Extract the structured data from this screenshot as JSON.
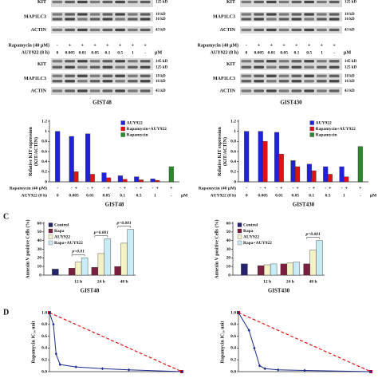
{
  "blots": [
    {
      "cell": "GIST48",
      "top_strips": [
        {
          "label": "KIT",
          "kd": [
            "125 kD"
          ]
        },
        {
          "label": "MAP1LC3",
          "kd": [
            "18 kD",
            "16 kD"
          ]
        },
        {
          "label": "ACTIN",
          "kd": [
            "43 kD"
          ]
        }
      ],
      "rapamycin_label": "Rapamycin (40 µM)",
      "rapamycin": [
        "-",
        "+",
        "+",
        "+",
        "+",
        "+",
        "+",
        "+"
      ],
      "auy_label": "AUY922 (8 h)",
      "auy": [
        "0",
        "0.005",
        "0.01",
        "0.05",
        "0.1",
        "0.5",
        "1",
        "-"
      ],
      "unit": "µM",
      "strips": [
        {
          "label": "KIT",
          "kd": [
            "145 kD",
            "125 kD"
          ]
        },
        {
          "label": "MAP1LC3",
          "kd": [
            "18 kD",
            "16 kD"
          ]
        },
        {
          "label": "ACTIN",
          "kd": [
            "43 kD"
          ]
        }
      ]
    },
    {
      "cell": "GIST430",
      "top_strips": [
        {
          "label": "KIT",
          "kd": [
            "125 kD"
          ]
        },
        {
          "label": "MAP1LC3",
          "kd": [
            "18 kD",
            "16 kD"
          ]
        },
        {
          "label": "ACTIN",
          "kd": [
            "43 kD"
          ]
        }
      ],
      "rapamycin_label": "Rapamycin (40 µM)",
      "rapamycin": [
        "-",
        "+",
        "+",
        "+",
        "+",
        "+",
        "+",
        "+"
      ],
      "auy_label": "AUY922 (8 h)",
      "auy": [
        "0",
        "0.005",
        "0.01",
        "0.05",
        "0.1",
        "0.5",
        "1",
        "-"
      ],
      "unit": "µM",
      "strips": [
        {
          "label": "KIT",
          "kd": [
            "145 kD",
            "125 kD"
          ]
        },
        {
          "label": "MAP1LC3",
          "kd": [
            "18 kD",
            "16 kD"
          ]
        },
        {
          "label": "ACTIN",
          "kd": [
            "43 kD"
          ]
        }
      ]
    }
  ],
  "panel_letters": [
    "C",
    "D"
  ],
  "chart_data": [
    {
      "type": "bar",
      "caption": "GIST48",
      "ylabel": [
        "Relative KIT expression",
        "(KIT/ACTIN)"
      ],
      "categories": [
        "0",
        "0.005",
        "0.01",
        "0.05",
        "0.1",
        "0.5",
        "1",
        "-"
      ],
      "rapamycin_label": "Rapamycin (40 µM)",
      "rapamycin": [
        "-",
        "-",
        "+",
        "-",
        "+",
        "-",
        "+",
        "-",
        "+",
        "-",
        "+",
        "-",
        "+",
        "+"
      ],
      "auy_label": "AUY922 (8 h)",
      "unit": "µM",
      "series": [
        {
          "name": "AUY922",
          "color": "#1f22d8",
          "values": [
            1.0,
            0.9,
            0.95,
            0.18,
            0.12,
            0.1,
            0.06,
            null
          ]
        },
        {
          "name": "Rapamycin+AUY922",
          "color": "#e01212",
          "values": [
            null,
            0.2,
            0.15,
            0.08,
            0.05,
            0.04,
            0.03,
            null
          ]
        },
        {
          "name": "Rapamycin",
          "color": "#2a8a2a",
          "values": [
            null,
            null,
            null,
            null,
            null,
            null,
            null,
            0.3
          ]
        }
      ],
      "ylim": [
        0,
        1.2
      ],
      "yticks": [
        0,
        0.2,
        0.4,
        0.6,
        0.8,
        1,
        1.2
      ],
      "legend": "upper right"
    },
    {
      "type": "bar",
      "caption": "GIST430",
      "ylabel": [
        "Relative KIT expression",
        "(KIT/ACTIN)"
      ],
      "categories": [
        "0",
        "0.005",
        "0.01",
        "0.05",
        "0.1",
        "0.5",
        "1",
        "-"
      ],
      "rapamycin_label": "Rapamycin (40 µM)",
      "rapamycin": [
        "-",
        "-",
        "+",
        "-",
        "+",
        "-",
        "+",
        "-",
        "+",
        "-",
        "+",
        "-",
        "+",
        "+"
      ],
      "auy_label": "AUY922 (8 h)",
      "unit": "µM",
      "series": [
        {
          "name": "AUY922",
          "color": "#1f22d8",
          "values": [
            1.0,
            1.0,
            0.98,
            0.42,
            0.35,
            0.3,
            0.3,
            null
          ]
        },
        {
          "name": "Rapamycin+AUY922",
          "color": "#e01212",
          "values": [
            null,
            0.8,
            0.55,
            0.3,
            0.22,
            0.15,
            0.1,
            null
          ]
        },
        {
          "name": "Rapamycin",
          "color": "#2a8a2a",
          "values": [
            null,
            null,
            null,
            null,
            null,
            null,
            null,
            0.7
          ]
        }
      ],
      "ylim": [
        0,
        1.2
      ],
      "yticks": [
        0,
        0.2,
        0.4,
        0.6,
        0.8,
        1,
        1.2
      ],
      "legend": "upper right"
    },
    {
      "type": "bar",
      "caption": "GIST48",
      "ylabel": [
        "Annexin V positive Cells (%)"
      ],
      "categories": [
        null,
        "12 h",
        "24 h",
        "48 h"
      ],
      "series": [
        {
          "name": "Control",
          "color": "#23236e",
          "values": [
            7,
            null,
            null,
            null
          ]
        },
        {
          "name": "Rapa",
          "color": "#7a1f40",
          "values": [
            null,
            8,
            9,
            10
          ]
        },
        {
          "name": "AUY922",
          "color": "#f4f1c6",
          "values": [
            null,
            15,
            25,
            37
          ]
        },
        {
          "name": "Rapa+AUY922",
          "color": "#c9edf6",
          "values": [
            null,
            20,
            42,
            53
          ]
        }
      ],
      "annotations": [
        "p=0.01",
        "p=0.001",
        "p=0.001"
      ],
      "ylim": [
        0,
        60
      ],
      "yticks": [
        0,
        10,
        20,
        30,
        40,
        50,
        60
      ],
      "legend": "upper left"
    },
    {
      "type": "bar",
      "caption": "GIST430",
      "ylabel": [
        "Annexin V positive Cells (%)"
      ],
      "categories": [
        null,
        "12 h",
        "24 h",
        "48 h"
      ],
      "series": [
        {
          "name": "Control",
          "color": "#23236e",
          "values": [
            13,
            null,
            null,
            null
          ]
        },
        {
          "name": "Rapa",
          "color": "#7a1f40",
          "values": [
            null,
            11,
            13,
            13
          ]
        },
        {
          "name": "AUY922",
          "color": "#f4f1c6",
          "values": [
            null,
            12,
            14,
            29
          ]
        },
        {
          "name": "Rapa+AUY922",
          "color": "#c9edf6",
          "values": [
            null,
            13,
            15,
            40
          ]
        }
      ],
      "annotations": [
        "p=0.001"
      ],
      "ylim": [
        0,
        60
      ],
      "yticks": [
        0,
        10,
        20,
        30,
        40,
        50,
        60
      ],
      "legend": "upper left"
    },
    {
      "type": "line",
      "ylabel": [
        "Rapamycin IC₅₀ unit"
      ],
      "series": [
        {
          "color": "#e01212",
          "dashed": true,
          "x": [
            0,
            1
          ],
          "values": [
            1,
            0
          ]
        },
        {
          "color": "#1a2a8a",
          "dashed": false,
          "x": [
            0,
            0.03,
            0.05,
            0.08,
            0.2,
            0.4,
            0.6,
            1
          ],
          "values": [
            1,
            0.8,
            0.3,
            0.12,
            0.08,
            0.05,
            0.03,
            0
          ]
        }
      ],
      "xlim": [
        0,
        1
      ],
      "ylim": [
        0,
        1
      ],
      "yticks": [
        {
          "value": 0,
          "label": "0.0"
        },
        0.2,
        0.4,
        0.6,
        0.8,
        {
          "value": 1,
          "label": "1.0"
        }
      ]
    },
    {
      "type": "line",
      "ylabel": [
        "Rapamycin IC₅₀ unit"
      ],
      "series": [
        {
          "color": "#e01212",
          "dashed": true,
          "x": [
            0,
            1
          ],
          "values": [
            1,
            0
          ]
        },
        {
          "color": "#1a2a8a",
          "dashed": false,
          "x": [
            0,
            0.08,
            0.12,
            0.16,
            0.2,
            0.3,
            0.5,
            1
          ],
          "values": [
            1,
            0.7,
            0.4,
            0.1,
            0.05,
            0.03,
            0.02,
            0
          ]
        }
      ],
      "xlim": [
        0,
        1
      ],
      "ylim": [
        0,
        1
      ],
      "yticks": [
        {
          "value": 0,
          "label": "0.0"
        },
        0.2,
        0.4,
        0.6,
        0.8,
        {
          "value": 1,
          "label": "1.0"
        }
      ]
    }
  ]
}
